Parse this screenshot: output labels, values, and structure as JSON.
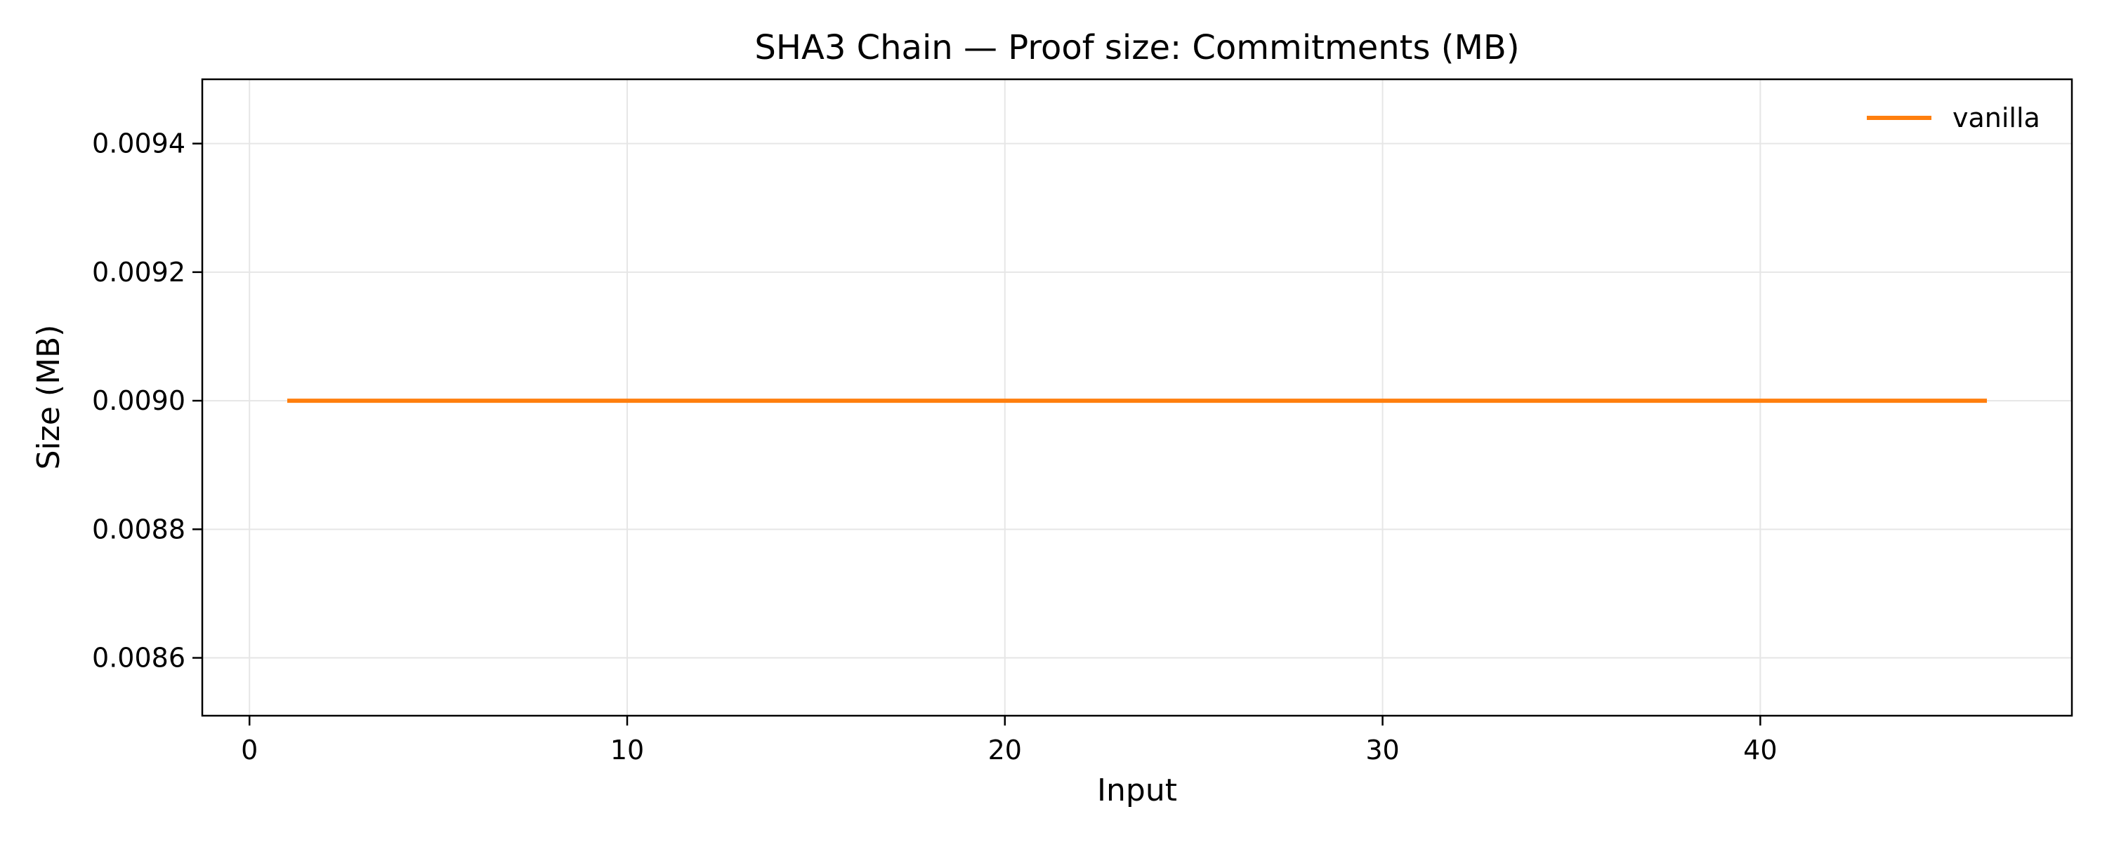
{
  "chart_data": {
    "type": "line",
    "title": "SHA3 Chain — Proof size: Commitments (MB)",
    "xlabel": "Input",
    "ylabel": "Size (MB)",
    "xlim": [
      -1.25,
      48.25
    ],
    "ylim": [
      0.00851,
      0.0095
    ],
    "xticks": [
      0,
      10,
      20,
      30,
      40
    ],
    "xtick_labels": [
      "0",
      "10",
      "20",
      "30",
      "40"
    ],
    "yticks": [
      0.0086,
      0.0088,
      0.009,
      0.0092,
      0.0094
    ],
    "ytick_labels": [
      "0.0086",
      "0.0088",
      "0.0090",
      "0.0092",
      "0.0094"
    ],
    "grid": true,
    "legend_position": "top-right",
    "series": [
      {
        "name": "vanilla",
        "color": "#ff7f0e",
        "x": [
          1,
          46
        ],
        "y": [
          0.009,
          0.009
        ]
      }
    ]
  }
}
